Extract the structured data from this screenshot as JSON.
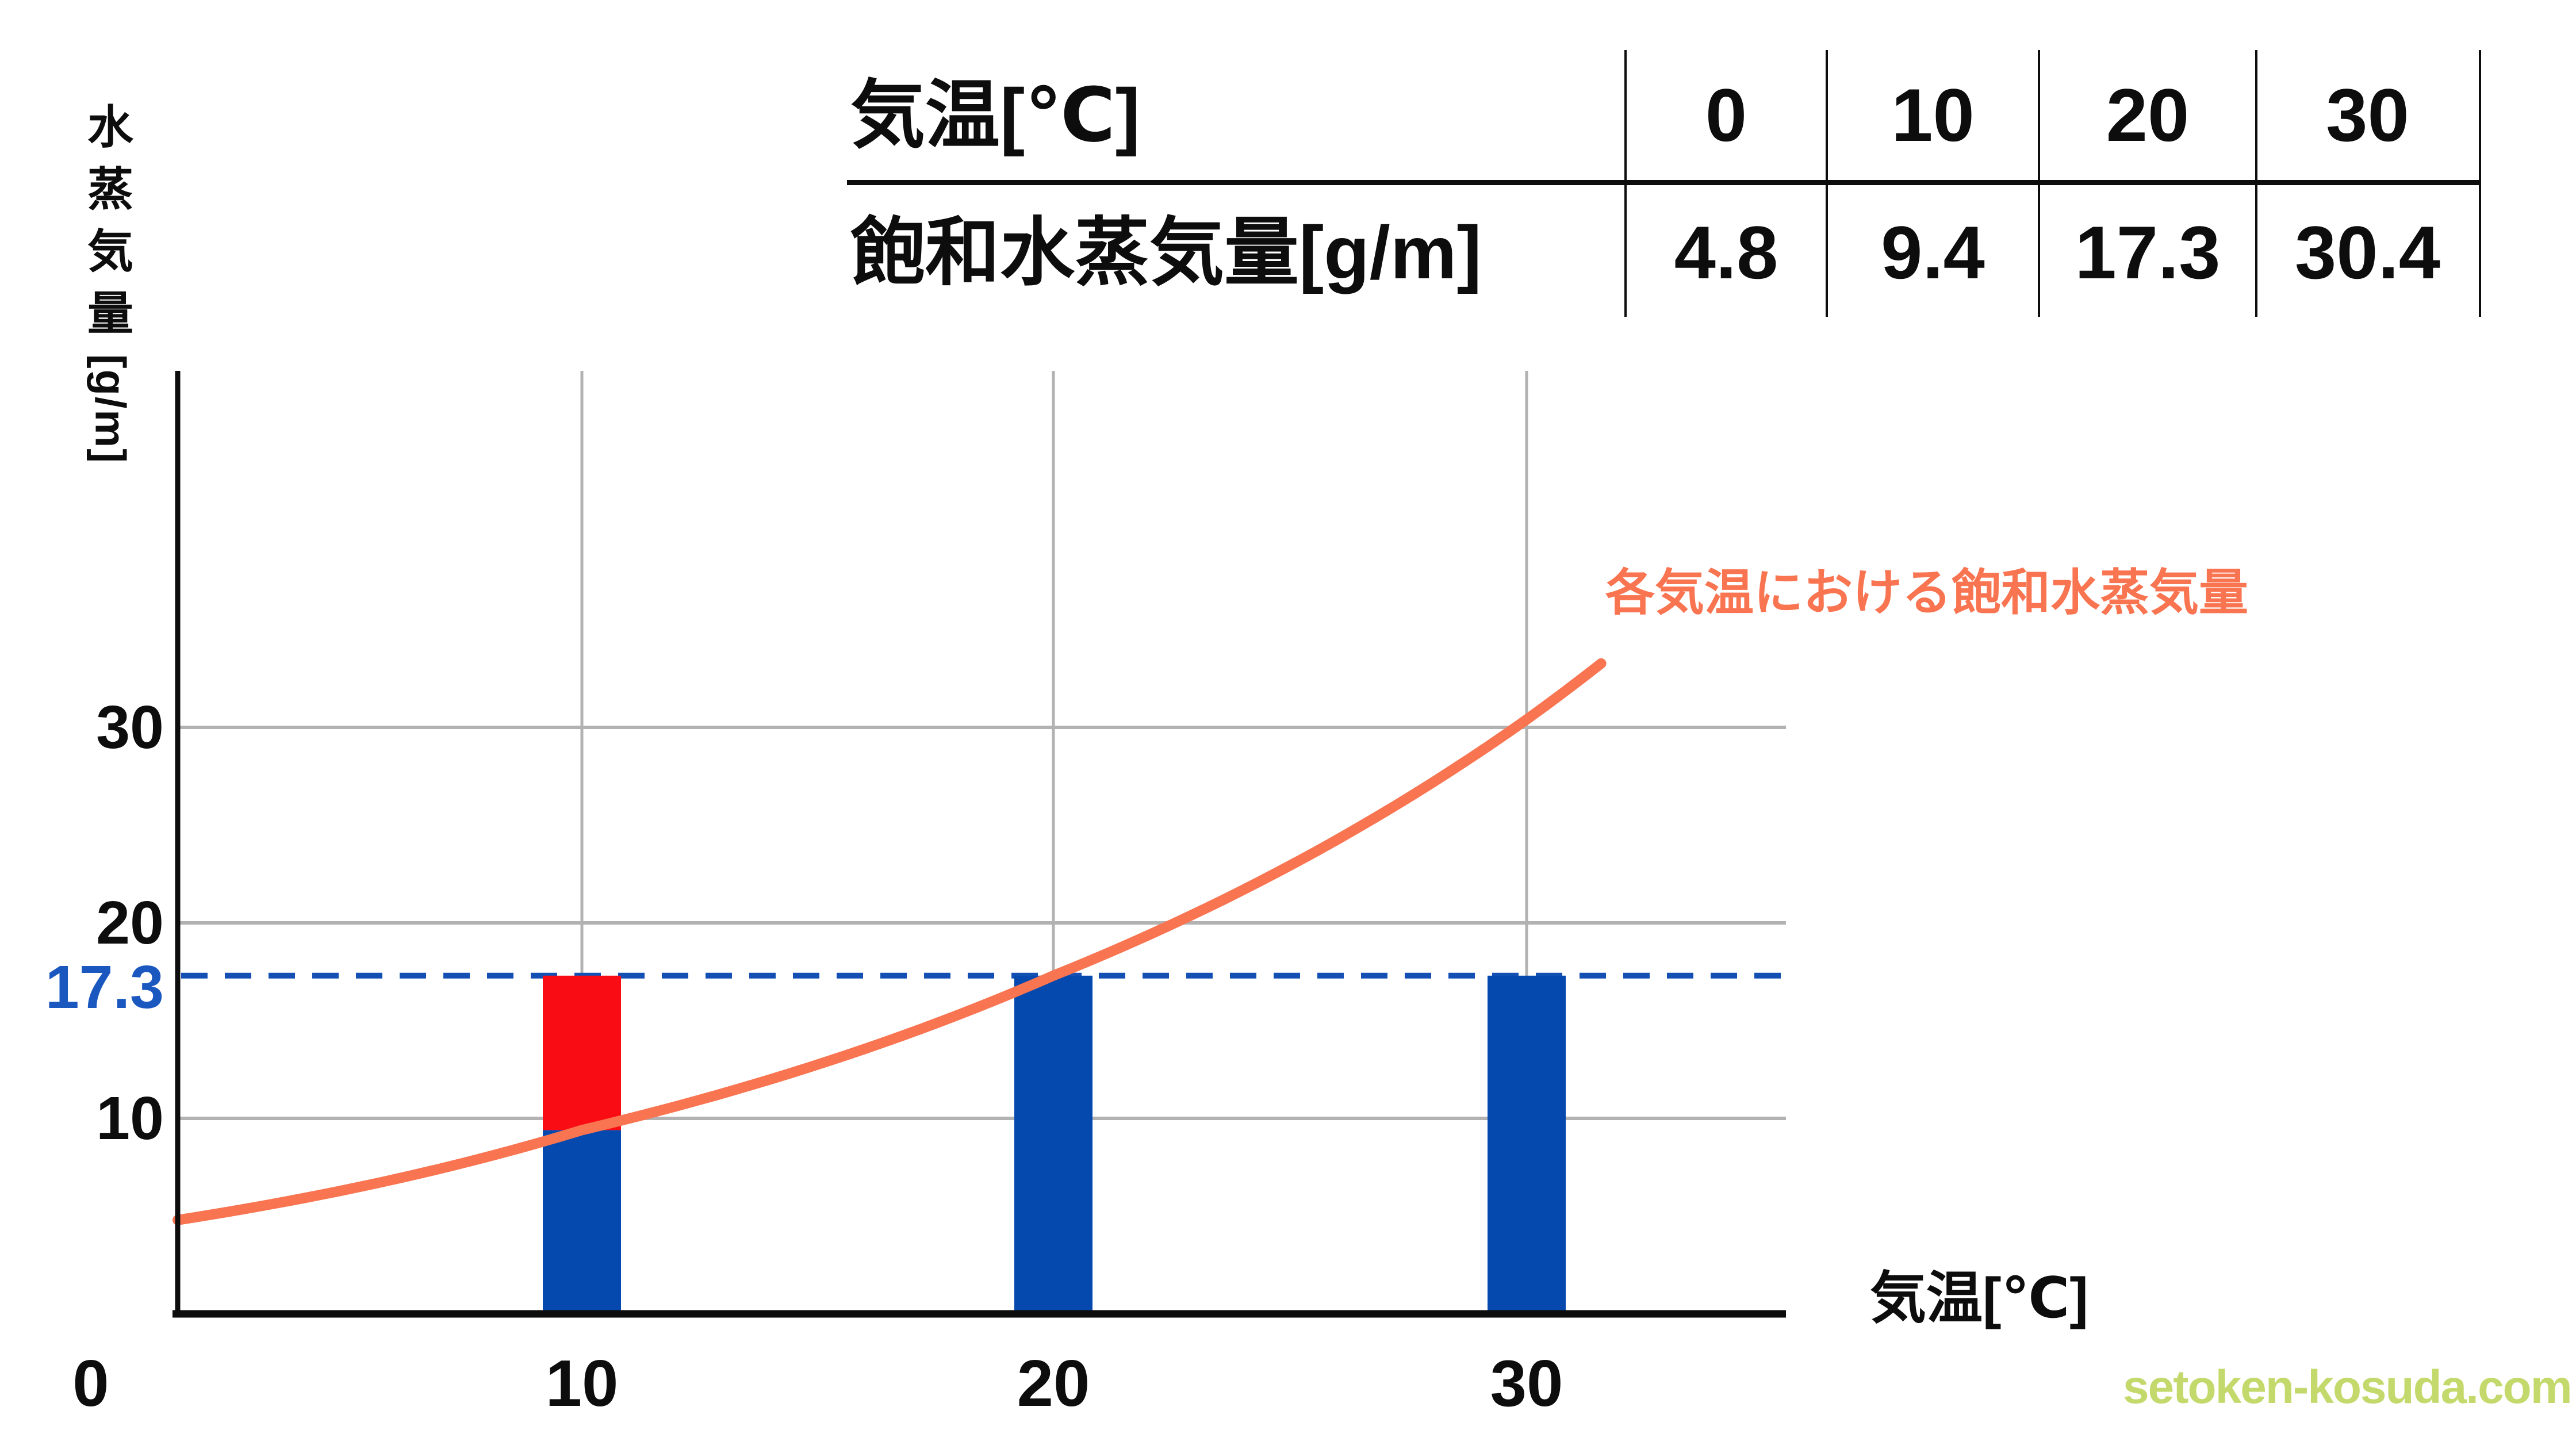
{
  "table": {
    "temperature_label": "気温[℃]",
    "saturation_label": "飽和水蒸気量[g/m]",
    "temperatures": [
      "0",
      "10",
      "20",
      "30"
    ],
    "saturation_values": [
      "4.8",
      "9.4",
      "17.3",
      "30.4"
    ]
  },
  "axes": {
    "y_title_chars": [
      "水",
      "蒸",
      "気",
      "量"
    ],
    "y_title_unit": "[g/m]",
    "y_ticks": [
      "30",
      "20",
      "10"
    ],
    "y_highlight_tick": "17.3",
    "x_ticks": [
      "0",
      "10",
      "20",
      "30"
    ],
    "x_label": "気温[℃]"
  },
  "annotation": "各気温における飽和水蒸気量",
  "watermark": "setoken-kosuda.com",
  "colors": {
    "bar_blue": "#0549AE",
    "bar_red": "#F90C13",
    "curve_orange": "#F97450",
    "dashed_blue": "#1450B4",
    "highlight_tick_blue": "#1A58C0",
    "grid_gray": "#B2B2B2",
    "axis_black": "#0D0D0D",
    "watermark_green": "#C3D96B"
  },
  "chart_data": {
    "type": "composite: exponential line + stacked bars",
    "title": "各気温における飽和水蒸気量",
    "xlabel": "気温[℃]",
    "ylabel": "水蒸気量[g/m]",
    "x_ticks": [
      0,
      10,
      20,
      30
    ],
    "y_ticks": [
      10,
      20,
      30
    ],
    "xlim": [
      0,
      35
    ],
    "ylim": [
      0,
      48
    ],
    "grid": true,
    "curve": {
      "name": "saturation-water-vapor-curve",
      "x": [
        0,
        10,
        20,
        30
      ],
      "y": [
        4.8,
        9.4,
        17.3,
        30.4
      ],
      "extend_to_x": 31.6
    },
    "dashed_line": {
      "y": 17.3,
      "label": "17.3"
    },
    "bars": [
      {
        "x": 10,
        "total": 17.3,
        "segments": [
          {
            "from": 0,
            "to": 9.4,
            "color_key": "bar_blue"
          },
          {
            "from": 9.4,
            "to": 17.3,
            "color_key": "bar_red"
          }
        ]
      },
      {
        "x": 20,
        "total": 17.3,
        "segments": [
          {
            "from": 0,
            "to": 17.3,
            "color_key": "bar_blue"
          }
        ]
      },
      {
        "x": 30,
        "total": 17.3,
        "segments": [
          {
            "from": 0,
            "to": 17.3,
            "color_key": "bar_blue"
          }
        ]
      }
    ]
  }
}
